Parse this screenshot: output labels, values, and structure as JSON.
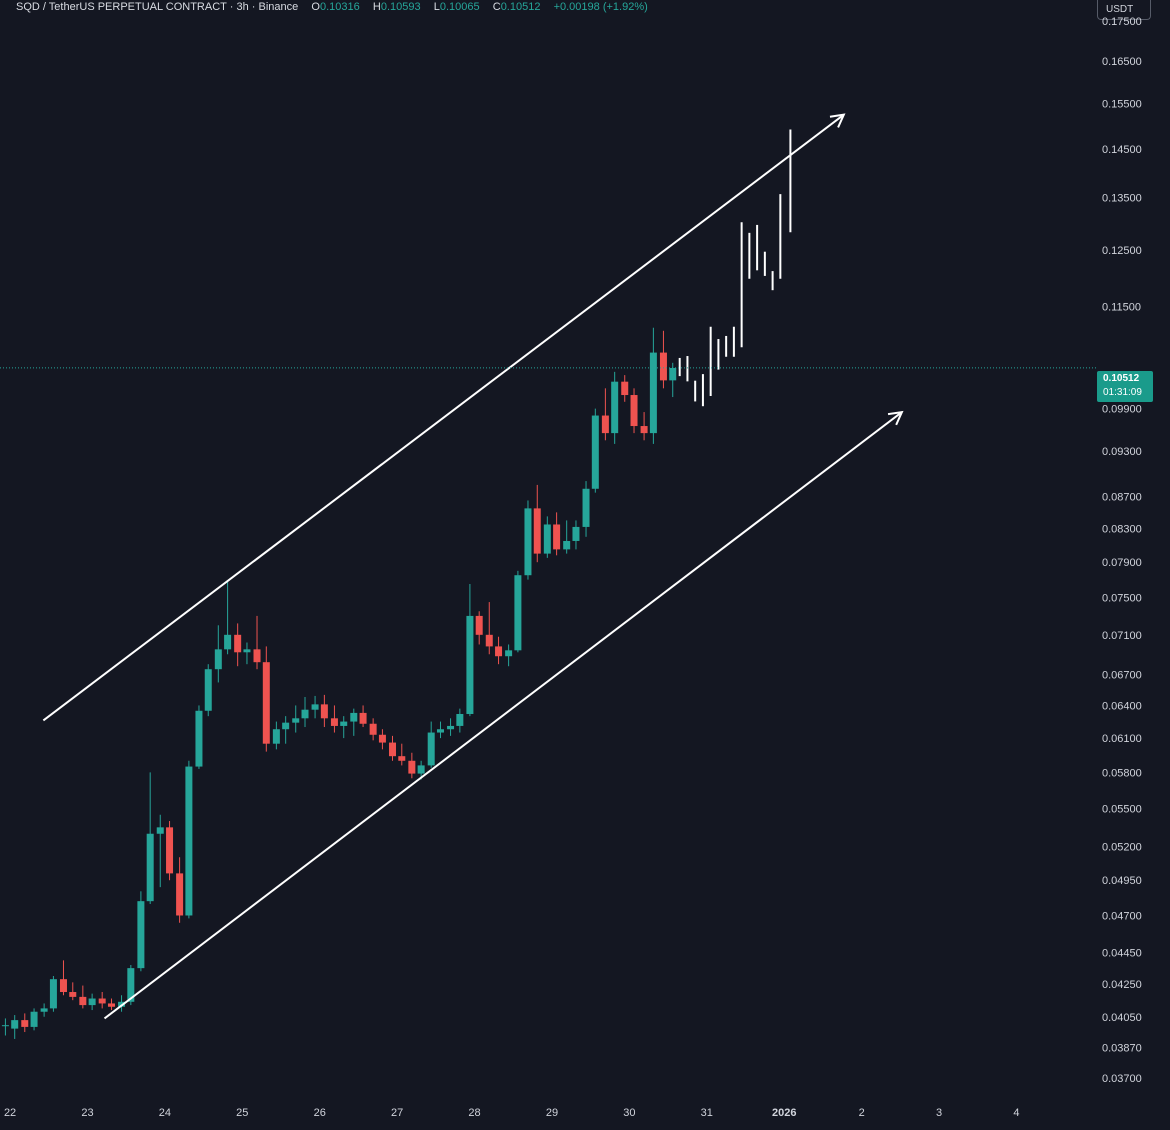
{
  "header": {
    "symbol": "SQD / TetherUS PERPETUAL CONTRACT",
    "interval": "3h",
    "exchange": "Binance",
    "open_label": "O",
    "open": "0.10316",
    "high_label": "H",
    "high": "0.10593",
    "low_label": "L",
    "low": "0.10065",
    "close_label": "C",
    "close": "0.10512",
    "change": "+0.00198 (+1.92%)",
    "sep": "·"
  },
  "currency_button": "USDT",
  "price_badge": {
    "price": "0.10512",
    "countdown": "01:31:09"
  },
  "colors": {
    "background": "#141722",
    "up": "#26a69a",
    "down": "#ef5350",
    "drawing": "#ffffff",
    "badge": "#1a9b8b"
  },
  "chart_data": {
    "type": "candlestick",
    "y_scale": "log",
    "ylim": [
      0.0361,
      0.1805
    ],
    "y_ticks": [
      "0.17500",
      "0.16500",
      "0.15500",
      "0.14500",
      "0.13500",
      "0.12500",
      "0.11500",
      "0.09900",
      "0.09300",
      "0.08700",
      "0.08300",
      "0.07900",
      "0.07500",
      "0.07100",
      "0.06700",
      "0.06400",
      "0.06100",
      "0.05800",
      "0.05500",
      "0.05200",
      "0.04950",
      "0.04700",
      "0.04450",
      "0.04250",
      "0.04050",
      "0.03870",
      "0.03700"
    ],
    "x_ticks": [
      {
        "label": "22",
        "day": 22
      },
      {
        "label": "23",
        "day": 23
      },
      {
        "label": "24",
        "day": 24
      },
      {
        "label": "25",
        "day": 25
      },
      {
        "label": "26",
        "day": 26
      },
      {
        "label": "27",
        "day": 27
      },
      {
        "label": "28",
        "day": 28
      },
      {
        "label": "29",
        "day": 29
      },
      {
        "label": "30",
        "day": 30
      },
      {
        "label": "31",
        "day": 31
      },
      {
        "label": "2026",
        "day": 32,
        "bold": true
      },
      {
        "label": "2",
        "day": 33
      },
      {
        "label": "3",
        "day": 34
      },
      {
        "label": "4",
        "day": 35
      }
    ],
    "xlim": [
      21.87,
      35.95
    ],
    "last_price": 0.10512,
    "candles": [
      {
        "day": 21.94,
        "o": 0.04,
        "h": 0.0404,
        "l": 0.0394,
        "c": 0.04
      },
      {
        "day": 22.06,
        "o": 0.0398,
        "h": 0.0406,
        "l": 0.0392,
        "c": 0.0403
      },
      {
        "day": 22.19,
        "o": 0.0403,
        "h": 0.0407,
        "l": 0.0396,
        "c": 0.0399
      },
      {
        "day": 22.31,
        "o": 0.0399,
        "h": 0.041,
        "l": 0.0397,
        "c": 0.0408
      },
      {
        "day": 22.44,
        "o": 0.0408,
        "h": 0.0413,
        "l": 0.0405,
        "c": 0.041
      },
      {
        "day": 22.56,
        "o": 0.041,
        "h": 0.043,
        "l": 0.0408,
        "c": 0.0428
      },
      {
        "day": 22.69,
        "o": 0.0428,
        "h": 0.044,
        "l": 0.0418,
        "c": 0.042
      },
      {
        "day": 22.81,
        "o": 0.042,
        "h": 0.0426,
        "l": 0.0415,
        "c": 0.0417
      },
      {
        "day": 22.94,
        "o": 0.0417,
        "h": 0.0424,
        "l": 0.041,
        "c": 0.0412
      },
      {
        "day": 23.06,
        "o": 0.0412,
        "h": 0.0419,
        "l": 0.0409,
        "c": 0.0416
      },
      {
        "day": 23.19,
        "o": 0.0416,
        "h": 0.042,
        "l": 0.041,
        "c": 0.0413
      },
      {
        "day": 23.31,
        "o": 0.0413,
        "h": 0.0416,
        "l": 0.0409,
        "c": 0.0411
      },
      {
        "day": 23.44,
        "o": 0.0411,
        "h": 0.0418,
        "l": 0.0408,
        "c": 0.0414
      },
      {
        "day": 23.56,
        "o": 0.0414,
        "h": 0.0437,
        "l": 0.0412,
        "c": 0.0435
      },
      {
        "day": 23.69,
        "o": 0.0435,
        "h": 0.0487,
        "l": 0.0433,
        "c": 0.048
      },
      {
        "day": 23.81,
        "o": 0.048,
        "h": 0.058,
        "l": 0.0478,
        "c": 0.053
      },
      {
        "day": 23.94,
        "o": 0.053,
        "h": 0.0545,
        "l": 0.049,
        "c": 0.0535
      },
      {
        "day": 24.06,
        "o": 0.0535,
        "h": 0.054,
        "l": 0.0495,
        "c": 0.05
      },
      {
        "day": 24.19,
        "o": 0.05,
        "h": 0.0512,
        "l": 0.0465,
        "c": 0.047
      },
      {
        "day": 24.31,
        "o": 0.047,
        "h": 0.059,
        "l": 0.0468,
        "c": 0.0585
      },
      {
        "day": 24.44,
        "o": 0.0585,
        "h": 0.064,
        "l": 0.0583,
        "c": 0.0635
      },
      {
        "day": 24.56,
        "o": 0.0635,
        "h": 0.068,
        "l": 0.063,
        "c": 0.0675
      },
      {
        "day": 24.69,
        "o": 0.0675,
        "h": 0.072,
        "l": 0.0662,
        "c": 0.0695
      },
      {
        "day": 24.81,
        "o": 0.0695,
        "h": 0.0768,
        "l": 0.069,
        "c": 0.071
      },
      {
        "day": 24.94,
        "o": 0.071,
        "h": 0.0722,
        "l": 0.0678,
        "c": 0.0692
      },
      {
        "day": 25.06,
        "o": 0.0692,
        "h": 0.0702,
        "l": 0.068,
        "c": 0.0695
      },
      {
        "day": 25.19,
        "o": 0.0695,
        "h": 0.073,
        "l": 0.0675,
        "c": 0.0682
      },
      {
        "day": 25.31,
        "o": 0.0682,
        "h": 0.0698,
        "l": 0.0598,
        "c": 0.0605
      },
      {
        "day": 25.44,
        "o": 0.0605,
        "h": 0.0625,
        "l": 0.06,
        "c": 0.0618
      },
      {
        "day": 25.56,
        "o": 0.0618,
        "h": 0.063,
        "l": 0.0605,
        "c": 0.0624
      },
      {
        "day": 25.69,
        "o": 0.0624,
        "h": 0.064,
        "l": 0.0615,
        "c": 0.0628
      },
      {
        "day": 25.81,
        "o": 0.0628,
        "h": 0.0648,
        "l": 0.062,
        "c": 0.0636
      },
      {
        "day": 25.94,
        "o": 0.0636,
        "h": 0.0649,
        "l": 0.0628,
        "c": 0.0641
      },
      {
        "day": 26.06,
        "o": 0.0641,
        "h": 0.065,
        "l": 0.062,
        "c": 0.0628
      },
      {
        "day": 26.19,
        "o": 0.0628,
        "h": 0.064,
        "l": 0.0615,
        "c": 0.0621
      },
      {
        "day": 26.31,
        "o": 0.0621,
        "h": 0.063,
        "l": 0.061,
        "c": 0.0625
      },
      {
        "day": 26.44,
        "o": 0.0625,
        "h": 0.0637,
        "l": 0.0612,
        "c": 0.0633
      },
      {
        "day": 26.56,
        "o": 0.0633,
        "h": 0.064,
        "l": 0.062,
        "c": 0.0623
      },
      {
        "day": 26.69,
        "o": 0.0623,
        "h": 0.0628,
        "l": 0.0608,
        "c": 0.0613
      },
      {
        "day": 26.81,
        "o": 0.0613,
        "h": 0.0618,
        "l": 0.06,
        "c": 0.0606
      },
      {
        "day": 26.94,
        "o": 0.0606,
        "h": 0.0612,
        "l": 0.059,
        "c": 0.0594
      },
      {
        "day": 27.06,
        "o": 0.0594,
        "h": 0.0605,
        "l": 0.0586,
        "c": 0.059
      },
      {
        "day": 27.19,
        "o": 0.059,
        "h": 0.0597,
        "l": 0.0575,
        "c": 0.0579
      },
      {
        "day": 27.31,
        "o": 0.0579,
        "h": 0.059,
        "l": 0.0574,
        "c": 0.0586
      },
      {
        "day": 27.44,
        "o": 0.0586,
        "h": 0.0625,
        "l": 0.0584,
        "c": 0.0615
      },
      {
        "day": 27.56,
        "o": 0.0615,
        "h": 0.0625,
        "l": 0.061,
        "c": 0.0618
      },
      {
        "day": 27.69,
        "o": 0.0618,
        "h": 0.0628,
        "l": 0.0612,
        "c": 0.0621
      },
      {
        "day": 27.81,
        "o": 0.0621,
        "h": 0.0637,
        "l": 0.0615,
        "c": 0.0632
      },
      {
        "day": 27.94,
        "o": 0.0632,
        "h": 0.0765,
        "l": 0.063,
        "c": 0.073
      },
      {
        "day": 28.06,
        "o": 0.073,
        "h": 0.0735,
        "l": 0.07,
        "c": 0.071
      },
      {
        "day": 28.19,
        "o": 0.071,
        "h": 0.0745,
        "l": 0.069,
        "c": 0.0698
      },
      {
        "day": 28.31,
        "o": 0.0698,
        "h": 0.0708,
        "l": 0.068,
        "c": 0.0688
      },
      {
        "day": 28.44,
        "o": 0.0688,
        "h": 0.07,
        "l": 0.0678,
        "c": 0.0694
      },
      {
        "day": 28.56,
        "o": 0.0694,
        "h": 0.078,
        "l": 0.0692,
        "c": 0.0775
      },
      {
        "day": 28.69,
        "o": 0.0775,
        "h": 0.0865,
        "l": 0.077,
        "c": 0.0855
      },
      {
        "day": 28.81,
        "o": 0.0855,
        "h": 0.0885,
        "l": 0.079,
        "c": 0.08
      },
      {
        "day": 28.94,
        "o": 0.08,
        "h": 0.0845,
        "l": 0.0795,
        "c": 0.0835
      },
      {
        "day": 29.06,
        "o": 0.0835,
        "h": 0.085,
        "l": 0.0798,
        "c": 0.0805
      },
      {
        "day": 29.19,
        "o": 0.0805,
        "h": 0.084,
        "l": 0.08,
        "c": 0.0815
      },
      {
        "day": 29.31,
        "o": 0.0815,
        "h": 0.084,
        "l": 0.0805,
        "c": 0.0832
      },
      {
        "day": 29.44,
        "o": 0.0832,
        "h": 0.089,
        "l": 0.082,
        "c": 0.088
      },
      {
        "day": 29.56,
        "o": 0.088,
        "h": 0.099,
        "l": 0.0875,
        "c": 0.098
      },
      {
        "day": 29.69,
        "o": 0.098,
        "h": 0.102,
        "l": 0.0945,
        "c": 0.0955
      },
      {
        "day": 29.81,
        "o": 0.0955,
        "h": 0.1045,
        "l": 0.094,
        "c": 0.103
      },
      {
        "day": 29.94,
        "o": 0.103,
        "h": 0.104,
        "l": 0.1,
        "c": 0.101
      },
      {
        "day": 30.06,
        "o": 0.101,
        "h": 0.102,
        "l": 0.0955,
        "c": 0.0965
      },
      {
        "day": 30.19,
        "o": 0.0965,
        "h": 0.0985,
        "l": 0.0945,
        "c": 0.0955
      },
      {
        "day": 30.31,
        "o": 0.0955,
        "h": 0.1115,
        "l": 0.094,
        "c": 0.1075
      },
      {
        "day": 30.44,
        "o": 0.1075,
        "h": 0.111,
        "l": 0.102,
        "c": 0.1032
      },
      {
        "day": 30.56,
        "o": 0.1032,
        "h": 0.1059,
        "l": 0.1007,
        "c": 0.1051
      }
    ],
    "projection_segments": [
      {
        "day": 30.65,
        "from": 0.1065,
        "to": 0.104
      },
      {
        "day": 30.75,
        "from": 0.1068,
        "to": 0.1032
      },
      {
        "day": 30.85,
        "from": 0.103,
        "to": 0.1002
      },
      {
        "day": 30.95,
        "from": 0.104,
        "to": 0.0995
      },
      {
        "day": 31.05,
        "from": 0.1115,
        "to": 0.101
      },
      {
        "day": 31.15,
        "from": 0.1095,
        "to": 0.105
      },
      {
        "day": 31.25,
        "from": 0.11,
        "to": 0.107
      },
      {
        "day": 31.35,
        "from": 0.1115,
        "to": 0.107
      },
      {
        "day": 31.45,
        "from": 0.13,
        "to": 0.1085
      },
      {
        "day": 31.55,
        "from": 0.128,
        "to": 0.12
      },
      {
        "day": 31.65,
        "from": 0.1295,
        "to": 0.1215
      },
      {
        "day": 31.75,
        "from": 0.1245,
        "to": 0.1205
      },
      {
        "day": 31.85,
        "from": 0.121,
        "to": 0.118
      },
      {
        "day": 31.95,
        "from": 0.1355,
        "to": 0.12
      },
      {
        "day": 32.08,
        "from": 0.149,
        "to": 0.1285
      }
    ],
    "channel_lines": [
      {
        "name": "upper",
        "from": {
          "day": 22.43,
          "price": 0.0626
        },
        "to": {
          "day": 32.77,
          "price": 0.1525
        },
        "arrow": true
      },
      {
        "name": "lower",
        "from": {
          "day": 23.22,
          "price": 0.0404
        },
        "to": {
          "day": 33.52,
          "price": 0.0985
        },
        "arrow": true
      }
    ]
  }
}
